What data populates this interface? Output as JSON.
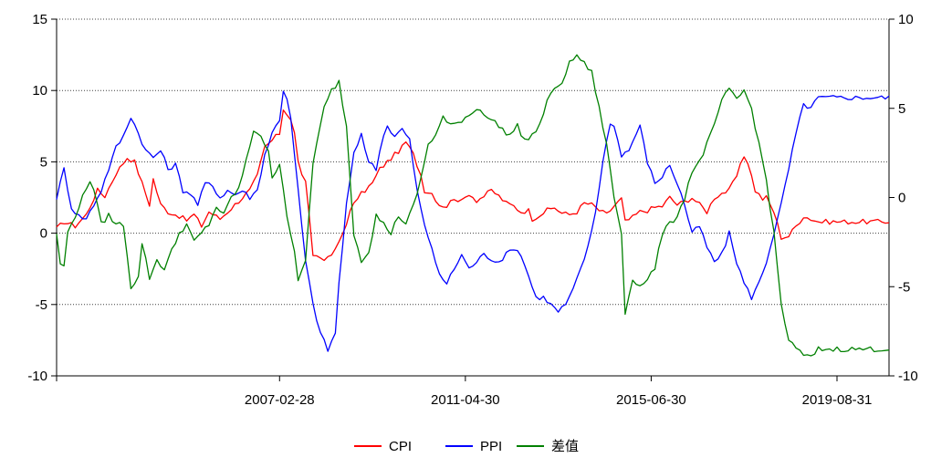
{
  "chart_data": {
    "type": "line",
    "x_ticks": [
      "2007-02-28",
      "2011-04-30",
      "2015-06-30",
      "2019-08-31"
    ],
    "x_tick_index": [
      60,
      110,
      160,
      210
    ],
    "n_points": 225,
    "y_left": {
      "ylim": [
        -10,
        15
      ],
      "ticks": [
        -10,
        -5,
        0,
        5,
        10,
        15
      ],
      "gridlines": [
        -5,
        0,
        5,
        10
      ]
    },
    "y_right": {
      "ylim": [
        -10,
        10
      ],
      "ticks": [
        -10,
        -5,
        0,
        5,
        10
      ]
    },
    "grid": true,
    "legend": "bottom-center",
    "colors": {
      "CPI": "#ff0000",
      "PPI": "#0000ff",
      "diff": "#008000"
    },
    "series": [
      {
        "name": "CPI",
        "axis": "left",
        "anchors": [
          [
            0,
            0.3
          ],
          [
            2,
            0.8
          ],
          [
            5,
            0.5
          ],
          [
            8,
            1.3
          ],
          [
            11,
            3.0
          ],
          [
            13,
            2.6
          ],
          [
            16,
            4.2
          ],
          [
            19,
            5.3
          ],
          [
            21,
            5.0
          ],
          [
            23,
            3.5
          ],
          [
            25,
            2.0
          ],
          [
            26,
            3.8
          ],
          [
            28,
            2.0
          ],
          [
            30,
            1.5
          ],
          [
            33,
            1.2
          ],
          [
            35,
            0.9
          ],
          [
            37,
            1.3
          ],
          [
            39,
            0.5
          ],
          [
            41,
            1.5
          ],
          [
            44,
            1.0
          ],
          [
            46,
            1.5
          ],
          [
            48,
            2.0
          ],
          [
            50,
            2.5
          ],
          [
            52,
            3.0
          ],
          [
            54,
            4.0
          ],
          [
            56,
            6.0
          ],
          [
            58,
            6.5
          ],
          [
            60,
            7.0
          ],
          [
            61,
            8.7
          ],
          [
            62,
            8.4
          ],
          [
            63,
            8.0
          ],
          [
            64,
            7.0
          ],
          [
            65,
            5.0
          ],
          [
            66,
            4.2
          ],
          [
            67,
            3.5
          ],
          [
            69,
            -1.5
          ],
          [
            71,
            -1.7
          ],
          [
            73,
            -1.8
          ],
          [
            75,
            -1.2
          ],
          [
            77,
            0.0
          ],
          [
            79,
            1.5
          ],
          [
            81,
            2.5
          ],
          [
            83,
            3.0
          ],
          [
            85,
            3.5
          ],
          [
            87,
            4.5
          ],
          [
            89,
            5.0
          ],
          [
            91,
            5.5
          ],
          [
            93,
            6.0
          ],
          [
            94,
            6.4
          ],
          [
            96,
            5.5
          ],
          [
            98,
            4.1
          ],
          [
            99,
            3.0
          ],
          [
            101,
            2.8
          ],
          [
            103,
            2.0
          ],
          [
            105,
            1.9
          ],
          [
            107,
            2.5
          ],
          [
            109,
            2.2
          ],
          [
            111,
            2.8
          ],
          [
            113,
            2.3
          ],
          [
            115,
            2.6
          ],
          [
            117,
            3.0
          ],
          [
            119,
            2.6
          ],
          [
            121,
            2.1
          ],
          [
            123,
            1.9
          ],
          [
            125,
            1.5
          ],
          [
            127,
            1.6
          ],
          [
            128,
            1.0
          ],
          [
            130,
            1.3
          ],
          [
            132,
            1.6
          ],
          [
            134,
            1.8
          ],
          [
            136,
            1.4
          ],
          [
            138,
            1.3
          ],
          [
            140,
            1.5
          ],
          [
            142,
            2.1
          ],
          [
            144,
            2.0
          ],
          [
            146,
            1.6
          ],
          [
            148,
            1.3
          ],
          [
            150,
            1.9
          ],
          [
            152,
            2.4
          ],
          [
            153,
            0.8
          ],
          [
            155,
            1.1
          ],
          [
            157,
            1.5
          ],
          [
            159,
            1.6
          ],
          [
            161,
            1.8
          ],
          [
            163,
            1.9
          ],
          [
            165,
            2.5
          ],
          [
            167,
            2.0
          ],
          [
            169,
            2.2
          ],
          [
            171,
            2.5
          ],
          [
            173,
            2.0
          ],
          [
            175,
            1.5
          ],
          [
            177,
            2.5
          ],
          [
            179,
            2.8
          ],
          [
            181,
            3.0
          ],
          [
            183,
            4.0
          ],
          [
            185,
            5.4
          ],
          [
            186,
            5.0
          ],
          [
            188,
            3.0
          ],
          [
            190,
            2.4
          ],
          [
            191,
            2.5
          ],
          [
            193,
            1.5
          ],
          [
            195,
            -0.3
          ],
          [
            197,
            -0.2
          ],
          [
            199,
            0.5
          ],
          [
            201,
            1.2
          ],
          [
            203,
            1.0
          ],
          [
            205,
            0.8
          ]
        ]
      },
      {
        "name": "PPI",
        "axis": "left",
        "anchors": [
          [
            0,
            2.5
          ],
          [
            2,
            4.5
          ],
          [
            4,
            1.8
          ],
          [
            6,
            1.2
          ],
          [
            8,
            1.0
          ],
          [
            10,
            2.0
          ],
          [
            12,
            3.0
          ],
          [
            14,
            4.5
          ],
          [
            16,
            6.0
          ],
          [
            18,
            6.8
          ],
          [
            20,
            8.2
          ],
          [
            22,
            7.0
          ],
          [
            24,
            5.8
          ],
          [
            26,
            5.3
          ],
          [
            28,
            5.8
          ],
          [
            30,
            4.5
          ],
          [
            32,
            4.8
          ],
          [
            34,
            3.0
          ],
          [
            36,
            2.8
          ],
          [
            38,
            2.0
          ],
          [
            40,
            3.5
          ],
          [
            42,
            3.3
          ],
          [
            44,
            2.5
          ],
          [
            46,
            3.0
          ],
          [
            48,
            2.7
          ],
          [
            50,
            3.0
          ],
          [
            52,
            2.5
          ],
          [
            54,
            3.0
          ],
          [
            56,
            5.5
          ],
          [
            58,
            7.0
          ],
          [
            60,
            8.0
          ],
          [
            61,
            10.0
          ],
          [
            62,
            9.5
          ],
          [
            63,
            8.0
          ],
          [
            65,
            3.0
          ],
          [
            67,
            -2.0
          ],
          [
            69,
            -5.0
          ],
          [
            71,
            -7.0
          ],
          [
            73,
            -8.2
          ],
          [
            75,
            -7.0
          ],
          [
            76,
            -3.5
          ],
          [
            78,
            2.0
          ],
          [
            80,
            5.5
          ],
          [
            82,
            7.0
          ],
          [
            84,
            5.0
          ],
          [
            86,
            4.5
          ],
          [
            88,
            7.0
          ],
          [
            89,
            7.5
          ],
          [
            91,
            6.8
          ],
          [
            93,
            7.3
          ],
          [
            95,
            6.5
          ],
          [
            97,
            3.0
          ],
          [
            99,
            0.5
          ],
          [
            101,
            -1.0
          ],
          [
            103,
            -3.0
          ],
          [
            105,
            -3.5
          ],
          [
            107,
            -2.5
          ],
          [
            109,
            -1.5
          ],
          [
            111,
            -2.5
          ],
          [
            113,
            -2.0
          ],
          [
            115,
            -1.5
          ],
          [
            117,
            -1.8
          ],
          [
            119,
            -2.0
          ],
          [
            121,
            -1.5
          ],
          [
            123,
            -1.0
          ],
          [
            125,
            -1.5
          ],
          [
            127,
            -3.0
          ],
          [
            129,
            -4.5
          ],
          [
            131,
            -4.5
          ],
          [
            133,
            -5.0
          ],
          [
            135,
            -5.5
          ],
          [
            137,
            -5.0
          ],
          [
            139,
            -4.0
          ],
          [
            141,
            -2.5
          ],
          [
            143,
            -1.0
          ],
          [
            145,
            1.5
          ],
          [
            147,
            5.0
          ],
          [
            149,
            7.8
          ],
          [
            150,
            7.5
          ],
          [
            152,
            5.5
          ],
          [
            154,
            5.8
          ],
          [
            156,
            7.0
          ],
          [
            157,
            7.5
          ],
          [
            159,
            5.0
          ],
          [
            161,
            3.5
          ],
          [
            163,
            4.0
          ],
          [
            165,
            4.8
          ],
          [
            167,
            3.5
          ],
          [
            169,
            2.0
          ],
          [
            171,
            0.0
          ],
          [
            173,
            0.5
          ],
          [
            175,
            -1.0
          ],
          [
            177,
            -2.0
          ],
          [
            179,
            -1.5
          ],
          [
            181,
            0.0
          ],
          [
            183,
            -2.0
          ],
          [
            185,
            -3.5
          ],
          [
            187,
            -4.5
          ],
          [
            189,
            -3.5
          ],
          [
            191,
            -2.0
          ],
          [
            193,
            0.0
          ],
          [
            195,
            2.0
          ],
          [
            197,
            4.5
          ],
          [
            199,
            7.0
          ],
          [
            201,
            9.0
          ],
          [
            203,
            8.8
          ],
          [
            205,
            9.5
          ]
        ]
      },
      {
        "name": "差值",
        "axis": "right",
        "anchors": [
          [
            0,
            -2.0
          ],
          [
            1,
            -3.8
          ],
          [
            2,
            -3.8
          ],
          [
            3,
            -2.0
          ],
          [
            5,
            -1.0
          ],
          [
            7,
            0.0
          ],
          [
            9,
            1.0
          ],
          [
            10,
            0.5
          ],
          [
            12,
            -1.5
          ],
          [
            14,
            -1.0
          ],
          [
            16,
            -1.5
          ],
          [
            18,
            -1.5
          ],
          [
            20,
            -5.0
          ],
          [
            22,
            -4.5
          ],
          [
            23,
            -2.5
          ],
          [
            25,
            -4.5
          ],
          [
            27,
            -3.5
          ],
          [
            29,
            -4.0
          ],
          [
            31,
            -3.0
          ],
          [
            33,
            -2.0
          ],
          [
            35,
            -1.5
          ],
          [
            37,
            -2.5
          ],
          [
            39,
            -2.0
          ],
          [
            41,
            -1.5
          ],
          [
            43,
            -0.5
          ],
          [
            45,
            -1.0
          ],
          [
            47,
            0.0
          ],
          [
            49,
            0.5
          ],
          [
            51,
            2.0
          ],
          [
            53,
            3.8
          ],
          [
            55,
            3.5
          ],
          [
            57,
            2.5
          ],
          [
            58,
            1.0
          ],
          [
            60,
            2.0
          ],
          [
            62,
            -1.0
          ],
          [
            64,
            -3.0
          ],
          [
            65,
            -4.8
          ],
          [
            67,
            -3.5
          ],
          [
            69,
            2.0
          ],
          [
            70,
            3.0
          ],
          [
            72,
            5.0
          ],
          [
            74,
            6.0
          ],
          [
            76,
            6.5
          ],
          [
            78,
            4.0
          ],
          [
            80,
            -2.0
          ],
          [
            82,
            -3.5
          ],
          [
            84,
            -3.0
          ],
          [
            86,
            -1.0
          ],
          [
            88,
            -1.5
          ],
          [
            90,
            -2.0
          ],
          [
            92,
            -1.0
          ],
          [
            94,
            -1.5
          ],
          [
            96,
            -0.5
          ],
          [
            98,
            1.0
          ],
          [
            100,
            3.0
          ],
          [
            102,
            3.5
          ],
          [
            104,
            4.5
          ],
          [
            106,
            4.0
          ],
          [
            108,
            4.2
          ],
          [
            110,
            4.5
          ],
          [
            112,
            4.8
          ],
          [
            114,
            5.0
          ],
          [
            116,
            4.5
          ],
          [
            118,
            4.2
          ],
          [
            120,
            3.8
          ],
          [
            122,
            3.5
          ],
          [
            124,
            4.0
          ],
          [
            126,
            3.2
          ],
          [
            128,
            3.5
          ],
          [
            130,
            4.0
          ],
          [
            132,
            5.5
          ],
          [
            134,
            6.0
          ],
          [
            136,
            6.5
          ],
          [
            138,
            7.5
          ],
          [
            140,
            8.0
          ],
          [
            142,
            7.5
          ],
          [
            144,
            7.0
          ],
          [
            146,
            5.0
          ],
          [
            148,
            3.0
          ],
          [
            150,
            0.0
          ],
          [
            152,
            -2.0
          ],
          [
            153,
            -6.5
          ],
          [
            155,
            -4.5
          ],
          [
            157,
            -5.0
          ],
          [
            159,
            -4.5
          ],
          [
            161,
            -4.0
          ],
          [
            163,
            -2.0
          ],
          [
            165,
            -1.5
          ],
          [
            167,
            -1.0
          ],
          [
            169,
            0.0
          ],
          [
            171,
            1.5
          ],
          [
            173,
            2.0
          ],
          [
            175,
            3.0
          ],
          [
            177,
            4.0
          ],
          [
            179,
            5.5
          ],
          [
            181,
            6.0
          ],
          [
            183,
            5.5
          ],
          [
            185,
            6.0
          ],
          [
            187,
            5.0
          ],
          [
            189,
            3.0
          ],
          [
            191,
            1.0
          ],
          [
            193,
            -2.0
          ],
          [
            195,
            -6.0
          ],
          [
            197,
            -8.0
          ],
          [
            199,
            -8.5
          ],
          [
            201,
            -8.8
          ],
          [
            203,
            -9.0
          ],
          [
            205,
            -8.5
          ]
        ]
      }
    ]
  }
}
